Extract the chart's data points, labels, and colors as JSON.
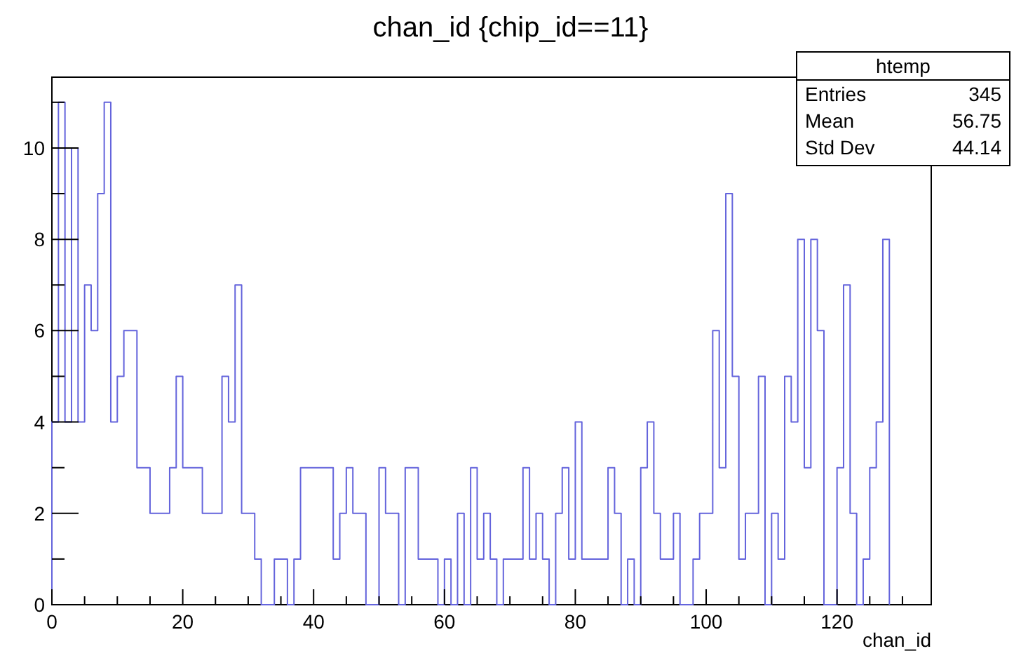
{
  "chart_data": {
    "type": "histogram",
    "title": "chan_id {chip_id==11}",
    "xlabel": "chan_id",
    "bins": [
      0,
      1,
      2,
      3,
      4,
      5,
      6,
      7,
      8,
      9,
      10,
      11,
      12,
      13,
      14,
      15,
      16,
      17,
      18,
      19,
      20,
      21,
      22,
      23,
      24,
      25,
      26,
      27,
      28,
      29,
      30,
      31,
      32,
      33,
      34,
      35,
      36,
      37,
      38,
      39,
      40,
      41,
      42,
      43,
      44,
      45,
      46,
      47,
      48,
      49,
      50,
      51,
      52,
      53,
      54,
      55,
      56,
      57,
      58,
      59,
      60,
      61,
      62,
      63,
      64,
      65,
      66,
      67,
      68,
      69,
      70,
      71,
      72,
      73,
      74,
      75,
      76,
      77,
      78,
      79,
      80,
      81,
      82,
      83,
      84,
      85,
      86,
      87,
      88,
      89,
      90,
      91,
      92,
      93,
      94,
      95,
      96,
      97,
      98,
      99,
      100,
      101,
      102,
      103,
      104,
      105,
      106,
      107,
      108,
      109,
      110,
      111,
      112,
      113,
      114,
      115,
      116,
      117,
      118,
      119,
      120,
      121,
      122,
      123,
      124,
      125,
      126,
      127,
      128
    ],
    "values": [
      4,
      11,
      4,
      10,
      4,
      7,
      6,
      9,
      11,
      4,
      5,
      6,
      6,
      3,
      3,
      2,
      2,
      2,
      3,
      5,
      3,
      3,
      3,
      2,
      2,
      2,
      5,
      4,
      7,
      2,
      2,
      1,
      0,
      0,
      1,
      1,
      0,
      1,
      3,
      3,
      3,
      3,
      3,
      1,
      2,
      3,
      2,
      2,
      0,
      0,
      3,
      2,
      2,
      0,
      3,
      3,
      1,
      1,
      1,
      0,
      1,
      0,
      2,
      0,
      3,
      1,
      2,
      1,
      0,
      1,
      1,
      1,
      3,
      1,
      2,
      1,
      0,
      2,
      3,
      1,
      4,
      1,
      1,
      1,
      1,
      3,
      2,
      0,
      1,
      0,
      3,
      4,
      2,
      1,
      1,
      2,
      0,
      0,
      1,
      2,
      2,
      6,
      3,
      9,
      5,
      1,
      2,
      2,
      5,
      0,
      2,
      1,
      5,
      4,
      8,
      3,
      8,
      6,
      0,
      0,
      3,
      7,
      2,
      0,
      1,
      3,
      4,
      8
    ],
    "color": "#6464dc",
    "xlim": [
      0,
      134.4
    ],
    "ylim": [
      0,
      11.55
    ],
    "xticks": [
      0,
      {
        "value": 5,
        "label": null
      },
      {
        "value": 10,
        "label": null
      },
      {
        "value": 15,
        "label": null
      },
      20,
      {
        "value": 25,
        "label": null
      },
      {
        "value": 30,
        "label": null
      },
      {
        "value": 35,
        "label": null
      },
      40,
      {
        "value": 45,
        "label": null
      },
      {
        "value": 50,
        "label": null
      },
      {
        "value": 55,
        "label": null
      },
      60,
      {
        "value": 65,
        "label": null
      },
      {
        "value": 70,
        "label": null
      },
      {
        "value": 75,
        "label": null
      },
      80,
      {
        "value": 85,
        "label": null
      },
      {
        "value": 90,
        "label": null
      },
      {
        "value": 95,
        "label": null
      },
      100,
      {
        "value": 105,
        "label": null
      },
      {
        "value": 110,
        "label": null
      },
      {
        "value": 115,
        "label": null
      },
      120,
      {
        "value": 125,
        "label": null
      },
      {
        "value": 130,
        "label": null
      }
    ],
    "yticks": [
      0,
      {
        "value": 1,
        "label": null
      },
      2,
      {
        "value": 3,
        "label": null
      },
      4,
      {
        "value": 5,
        "label": null
      },
      6,
      {
        "value": 7,
        "label": null
      },
      8,
      {
        "value": 9,
        "label": null
      },
      10,
      {
        "value": 11,
        "label": null
      }
    ],
    "grid": false,
    "annotations": [
      "htemp",
      "Entries",
      "345",
      "Mean",
      "56.75",
      "Std Dev",
      "44.14"
    ]
  }
}
